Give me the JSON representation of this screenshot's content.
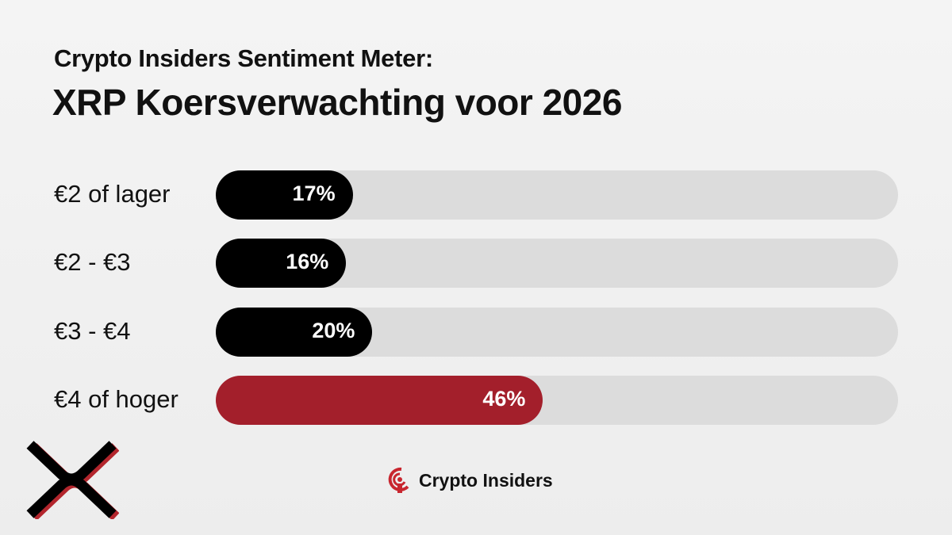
{
  "chart_data": {
    "type": "bar",
    "orientation": "horizontal",
    "title": "Crypto Insiders Sentiment Meter:",
    "subtitle": "XRP Koersverwachting voor 2026",
    "categories": [
      "€2 of lager",
      "€2 - €3",
      "€3 - €4",
      "€4 of hoger"
    ],
    "values": [
      17,
      16,
      20,
      46
    ],
    "value_labels": [
      "17%",
      "16%",
      "20%",
      "46%"
    ],
    "unit": "%",
    "colors": [
      "#000000",
      "#000000",
      "#000000",
      "#a31f2b"
    ],
    "track_color": "#dcdcdc",
    "grid": false
  },
  "brand": {
    "name": "Crypto Insiders",
    "logo_icon": "crypto-insiders-logo",
    "accent": "#c8262f"
  },
  "xrp_logo": "xrp-logo"
}
